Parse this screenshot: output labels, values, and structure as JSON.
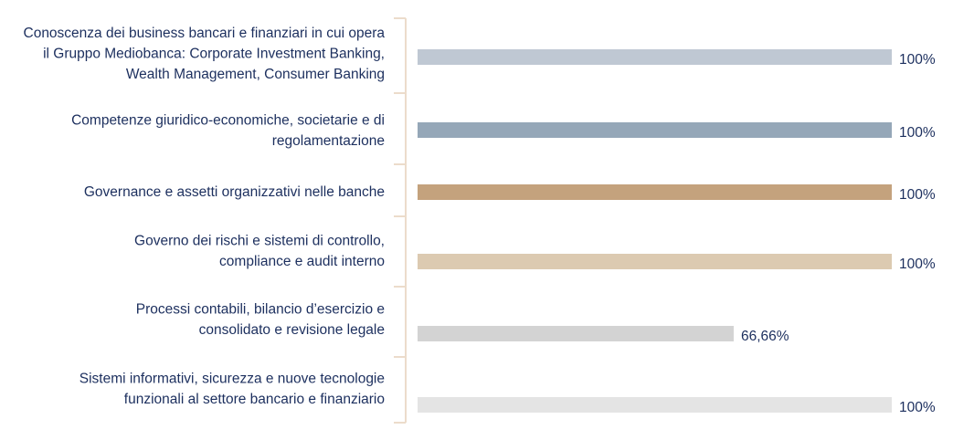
{
  "chart_data": {
    "type": "bar",
    "orientation": "horizontal",
    "xlim": [
      0,
      100
    ],
    "grid": false,
    "categories": [
      [
        "Conoscenza dei business bancari e finanziari in cui opera",
        "il Gruppo Mediobanca: Corporate Investment Banking,",
        "Wealth Management, Consumer Banking"
      ],
      [
        "Competenze giuridico-economiche, societarie e di",
        "regolamentazione"
      ],
      [
        "Governance e assetti organizzativi nelle banche"
      ],
      [
        "Governo dei rischi e sistemi di controllo,",
        "compliance e audit interno"
      ],
      [
        "Processi contabili, bilancio d’esercizio e",
        "consolidato e revisione legale"
      ],
      [
        "Sistemi informativi, sicurezza e nuove tecnologie",
        "funzionali al settore bancario e finanziario"
      ]
    ],
    "values": [
      100,
      100,
      100,
      100,
      66.66,
      100
    ],
    "value_labels": [
      "100%",
      "100%",
      "100%",
      "100%",
      "66,66%",
      "100%"
    ],
    "colors": [
      "#bfc8d3",
      "#95a7b8",
      "#c4a27d",
      "#dccab1",
      "#d3d3d3",
      "#e4e4e4"
    ],
    "axis_color": "#ecdccb",
    "text_color": "#1c2f5e"
  }
}
